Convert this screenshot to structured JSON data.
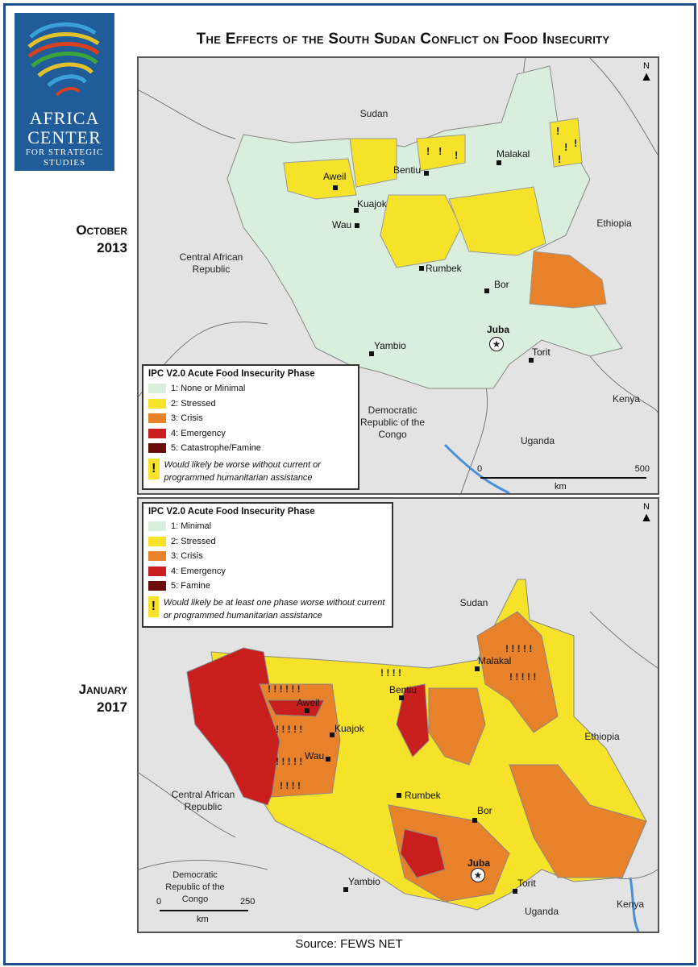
{
  "header": {
    "title": "The Effects of the South Sudan Conflict on Food Insecurity",
    "logo_lines": [
      "AFRICA",
      "CENTER",
      "FOR STRATEGIC",
      "STUDIES"
    ]
  },
  "colors": {
    "phase1": "#d9eedd",
    "phase2": "#f7e22a",
    "phase3": "#e8822a",
    "phase4": "#c81e1e",
    "phase5": "#6b0d0d",
    "neighbor": "#e3e3e3",
    "water": "#7fb7e6"
  },
  "panel_top": {
    "period_month": "October",
    "period_year": "2013",
    "legend": {
      "title": "IPC V2.0 Acute Food Insecurity Phase",
      "items": [
        "1: None or Minimal",
        "2: Stressed",
        "3: Crisis",
        "4: Emergency",
        "5: Catastrophe/Famine"
      ],
      "note": "Would likely be worse without current or programmed humanitarian assistance"
    },
    "countries": {
      "sudan": "Sudan",
      "ethiopia": "Ethiopia",
      "car": "Central African Republic",
      "drc": "Democratic Republic of the Congo",
      "uganda": "Uganda",
      "kenya": "Kenya"
    },
    "cities": {
      "aweil": "Aweil",
      "kuajok": "Kuajok",
      "wau": "Wau",
      "bentiu": "Bentiu",
      "malakal": "Malakal",
      "rumbek": "Rumbek",
      "bor": "Bor",
      "juba": "Juba",
      "torit": "Torit",
      "yambio": "Yambio"
    },
    "scale": {
      "start": "0",
      "end": "500",
      "unit": "km"
    },
    "north": "N"
  },
  "panel_bottom": {
    "period_month": "January",
    "period_year": "2017",
    "legend": {
      "title": "IPC V2.0 Acute Food Insecurity Phase",
      "items": [
        "1: Minimal",
        "2: Stressed",
        "3: Crisis",
        "4: Emergency",
        "5: Famine"
      ],
      "note": "Would likely be at least one phase worse without current or programmed humanitarian assistance"
    },
    "countries": {
      "sudan": "Sudan",
      "ethiopia": "Ethiopia",
      "car": "Central African Republic",
      "drc": "Democratic Republic of the Congo",
      "uganda": "Uganda",
      "kenya": "Kenya"
    },
    "cities": {
      "aweil": "Aweil",
      "kuajok": "Kuajok",
      "wau": "Wau",
      "bentiu": "Bentiu",
      "malakal": "Malakal",
      "rumbek": "Rumbek",
      "bor": "Bor",
      "juba": "Juba",
      "torit": "Torit",
      "yambio": "Yambio"
    },
    "scale": {
      "start": "0",
      "end": "250",
      "unit": "km"
    },
    "north": "N"
  },
  "source": "Source: FEWS NET"
}
